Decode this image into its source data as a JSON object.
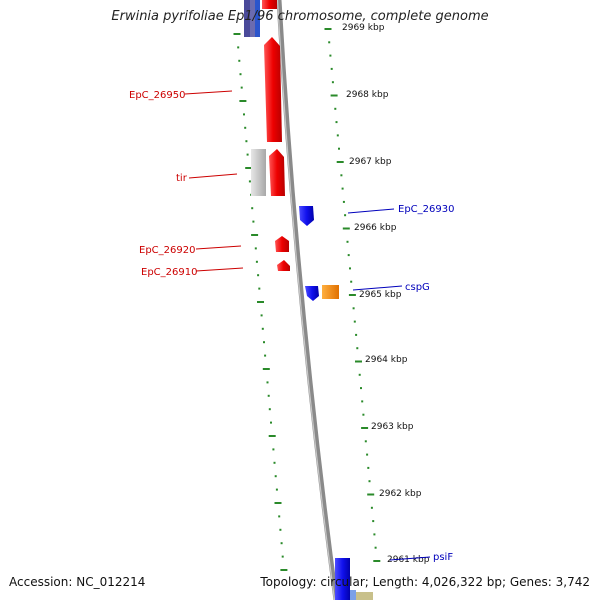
{
  "title": "Erwinia pyrifoliae Ep1/96 chromosome, complete genome",
  "accession_text": "Accession: NC_012214",
  "summary_text": "Topology: circular; Length: 4,026,322 bp; Genes: 3,742",
  "colors": {
    "backbone": "#8a8a8a",
    "tick_dash": "#2a8a2a",
    "forward_gene": "#ee1111",
    "reverse_gene": "#1111ee",
    "orange_gene": "#ff8800",
    "grey_gene": "#c0c0c0",
    "olive_gene": "#c8c08a",
    "navy_gene": "#4a4a9a",
    "forward_label": "#cc0000",
    "reverse_label": "#0000bb"
  },
  "tick_labels": [
    "2969 kbp",
    "2968 kbp",
    "2967 kbp",
    "2966 kbp",
    "2965 kbp",
    "2964 kbp",
    "2963 kbp",
    "2962 kbp",
    "2961 kbp"
  ],
  "gene_labels": {
    "forward": [
      "EpC_26950",
      "tir",
      "EpC_26920",
      "EpC_26910"
    ],
    "reverse": [
      "EpC_26930",
      "cspG",
      "psiF"
    ]
  }
}
